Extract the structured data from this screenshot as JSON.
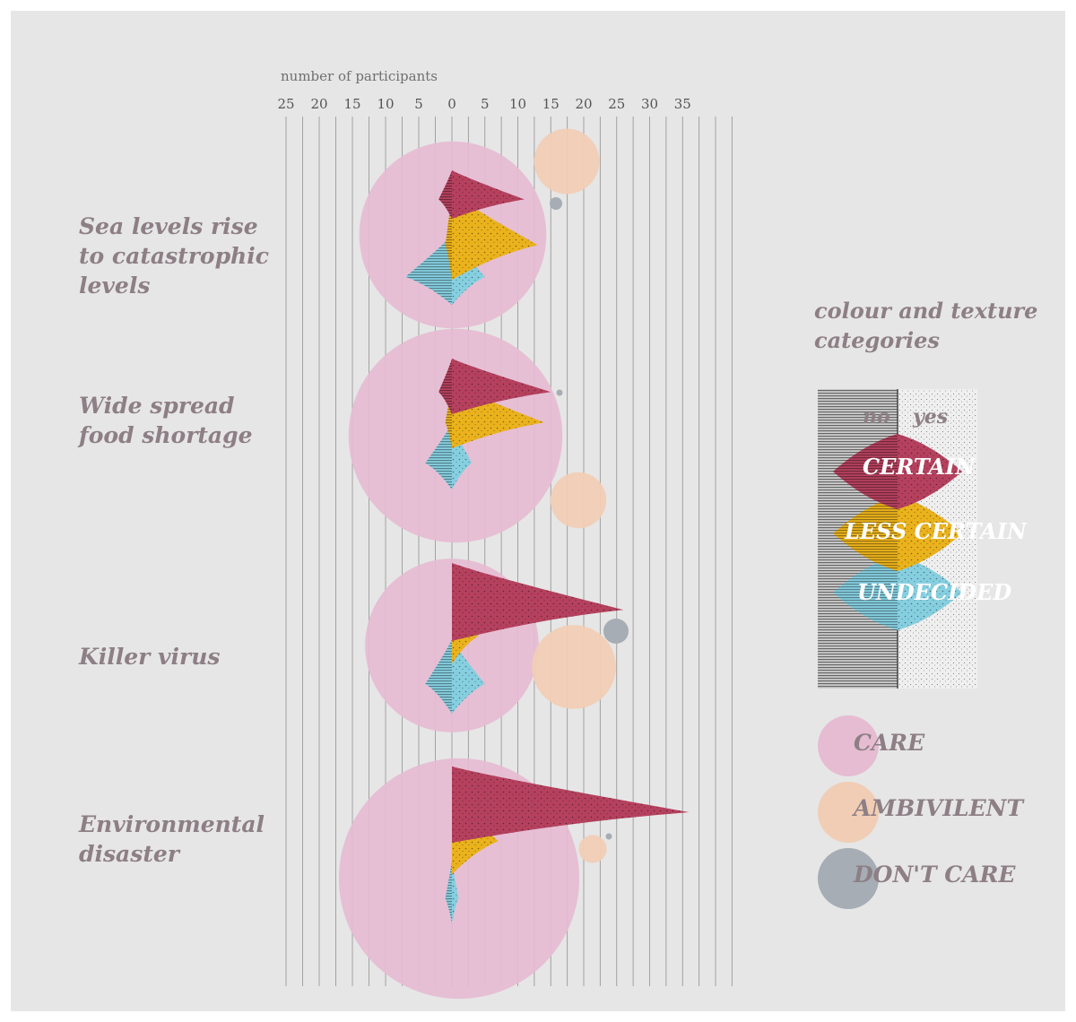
{
  "axis_title": "number of participants",
  "tick_labels_left": [
    "25",
    "20",
    "15",
    "10",
    "5"
  ],
  "tick_labels_right": [
    "0",
    "5",
    "10",
    "15",
    "20",
    "25",
    "30",
    "35"
  ],
  "categories": [
    "Sea levels rise\nto catastrophic\nlevels",
    "Wide spread\nfood shortage",
    "Killer virus",
    "Environmental\ndisaster"
  ],
  "legend": {
    "title": "colour and texture\ncategories",
    "no_label": "no",
    "yes_label": "yes",
    "shapes": [
      {
        "label": "CERTAIN",
        "color": "#b5415e"
      },
      {
        "label": "LESS CERTAIN",
        "color": "#eab21c"
      },
      {
        "label": "UNDECIDED",
        "color": "#86cfe0"
      }
    ],
    "circles": [
      {
        "label": "CARE",
        "color": "#e6bcd2"
      },
      {
        "label": "AMBIVILENT",
        "color": "#f1cdb5"
      },
      {
        "label": "DON'T CARE",
        "color": "#a6adb4"
      }
    ]
  },
  "chart_data": {
    "type": "other",
    "x_axis": {
      "label": "number of participants",
      "left_range": [
        0,
        25
      ],
      "right_range": [
        0,
        35
      ],
      "left_meaning": "no",
      "right_meaning": "yes"
    },
    "series_colors": {
      "certain": "#b5415e",
      "less_certain": "#eab21c",
      "undecided": "#86cfe0",
      "care": "#e6bcd2",
      "ambivalent": "#f1cdb5",
      "dont_care": "#a6adb4"
    },
    "categories": [
      {
        "name": "Sea levels rise to catastrophic levels",
        "certain": {
          "yes": 11,
          "no": 2
        },
        "less_certain": {
          "yes": 13,
          "no": 1
        },
        "undecided": {
          "yes": 5,
          "no": 7
        },
        "care": 14,
        "ambivalent": 7,
        "dont_care": 1
      },
      {
        "name": "Wide spread food shortage",
        "certain": {
          "yes": 15,
          "no": 2
        },
        "less_certain": {
          "yes": 14,
          "no": 1
        },
        "undecided": {
          "yes": 3,
          "no": 4
        },
        "care": 16,
        "ambivalent": 6,
        "dont_care": 0.5
      },
      {
        "name": "Killer virus",
        "certain": {
          "yes": 26,
          "no": 0
        },
        "less_certain": {
          "yes": 4,
          "no": 0
        },
        "undecided": {
          "yes": 5,
          "no": 4
        },
        "care": 13,
        "ambivalent": 9,
        "dont_care": 2
      },
      {
        "name": "Environmental disaster",
        "certain": {
          "yes": 36,
          "no": 0
        },
        "less_certain": {
          "yes": 7,
          "no": 0
        },
        "undecided": {
          "yes": 1,
          "no": 1
        },
        "care": 18,
        "ambivalent": 3,
        "dont_care": 0.5
      }
    ]
  }
}
